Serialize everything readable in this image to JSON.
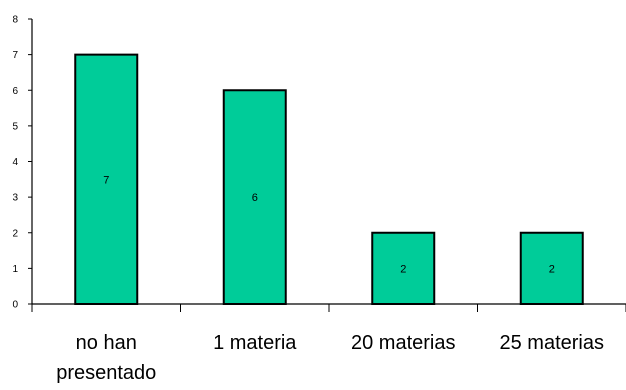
{
  "chart_data": {
    "type": "bar",
    "categories": [
      [
        "no han",
        "presentado"
      ],
      [
        "1 materia"
      ],
      [
        "20 materias"
      ],
      [
        "25 materias"
      ]
    ],
    "values": [
      7,
      6,
      2,
      2
    ],
    "data_labels": [
      "7",
      "6",
      "2",
      "2"
    ],
    "ylim": [
      0,
      8
    ],
    "yticks": [
      "0",
      "1",
      "2",
      "3",
      "4",
      "5",
      "6",
      "7",
      "8"
    ],
    "bar_color": "#00CC99",
    "bar_stroke": "#000000",
    "grid": false,
    "legend": "none"
  }
}
